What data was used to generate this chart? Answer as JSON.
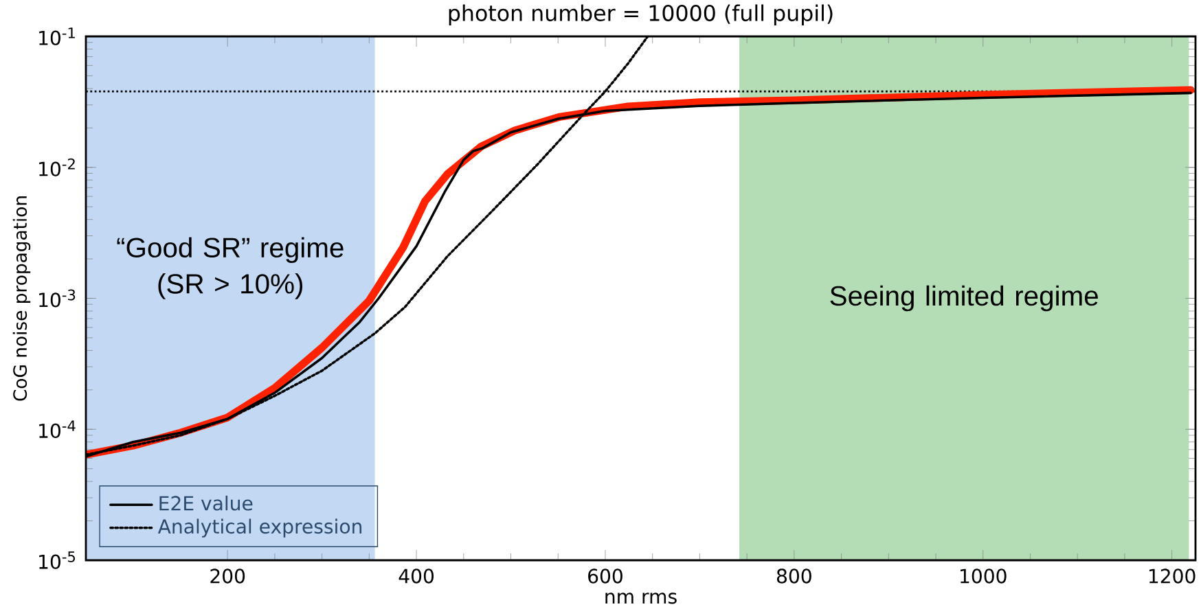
{
  "chart_data": {
    "type": "line",
    "title": "photon number = 10000 (full pupil)",
    "xlabel": "nm rms",
    "ylabel": "CoG noise propagation",
    "log": "y",
    "xlim": [
      50,
      1225
    ],
    "ylim": [
      1e-05,
      0.1
    ],
    "xticks": [
      200,
      400,
      600,
      800,
      1000,
      1200
    ],
    "yticks": [
      {
        "value": 1e-05,
        "label": "10$^{-5}$"
      },
      {
        "value": 0.0001,
        "label": "10$^{-4}$"
      },
      {
        "value": 0.001,
        "label": "10$^{-3}$"
      },
      {
        "value": 0.01,
        "label": "10$^{-2}$"
      },
      {
        "value": 0.1,
        "label": "10$^{-1}$"
      }
    ],
    "grid": false,
    "legend": "bottom left",
    "marker": "none",
    "bands": [
      {
        "axis": "x",
        "from": 50,
        "to": 356,
        "label": "“Good SR” regime (SR > 10%)",
        "color": "#c2d8f3"
      },
      {
        "axis": "x",
        "from": 742,
        "to": 1218,
        "label": "Seeing limited regime",
        "color": "#b4ddb6"
      }
    ],
    "ref_lines": [
      {
        "axis": "y",
        "value": 0.038,
        "color": "#000000",
        "line_style": "dotted"
      }
    ],
    "series": [
      {
        "color": "#ff2200",
        "line_style": "solid",
        "x": [
          50,
          100,
          150,
          200,
          250,
          300,
          350,
          386,
          409,
          433,
          469,
          504,
          552,
          624,
          700,
          800,
          1000,
          1220
        ],
        "values": [
          6.4e-05,
          7.5e-05,
          9.4e-05,
          0.000123,
          0.000207,
          0.00042,
          0.00096,
          0.00245,
          0.0055,
          0.0089,
          0.0145,
          0.0191,
          0.0243,
          0.0292,
          0.0314,
          0.0325,
          0.0358,
          0.039
        ]
      },
      {
        "name": "E2E value",
        "color": "#000000",
        "line_style": "solid",
        "x": [
          50,
          100,
          150,
          200,
          250,
          300,
          340,
          360,
          400,
          430,
          450,
          460,
          470,
          500,
          550,
          600,
          700,
          800,
          1000,
          1220
        ],
        "values": [
          6.2e-05,
          8e-05,
          9.4e-05,
          0.00012,
          0.00019,
          0.00035,
          0.00066,
          0.001,
          0.0025,
          0.0065,
          0.0114,
          0.0133,
          0.014,
          0.0185,
          0.0235,
          0.027,
          0.0295,
          0.031,
          0.034,
          0.037
        ]
      },
      {
        "name": "Analytical expression",
        "color": "#000000",
        "line_style": "dotted",
        "x": [
          50,
          100,
          150,
          200,
          250,
          300,
          356,
          388,
          433,
          481,
          528,
          576,
          600,
          624,
          645
        ],
        "values": [
          6.4e-05,
          7.5e-05,
          9e-05,
          0.00012,
          0.00018,
          0.00028,
          0.00054,
          0.00086,
          0.0021,
          0.0047,
          0.0105,
          0.025,
          0.038,
          0.062,
          0.1
        ]
      }
    ]
  }
}
